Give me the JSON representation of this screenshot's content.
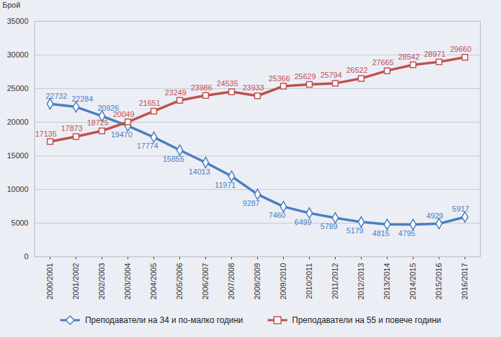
{
  "chart_data": {
    "type": "line",
    "y_label": "Брой",
    "categories": [
      "2000/2001",
      "2001/2002",
      "2002/2003",
      "2003/2004",
      "2004/2005",
      "2005/2006",
      "2006/2007",
      "2007/2008",
      "2008/2009",
      "2009/2010",
      "2010/2011",
      "2011/2012",
      "2012/2013",
      "2013/2014",
      "2014/2015",
      "2015/2016",
      "2016/2017"
    ],
    "series": [
      {
        "name": "Преподаватели на 34 и по-малко години",
        "color": "#4a7ebf",
        "marker": "diamond",
        "values": [
          22732,
          22284,
          20926,
          19470,
          17774,
          15855,
          14013,
          11971,
          9287,
          7460,
          6499,
          5789,
          5179,
          4815,
          4795,
          4929,
          5917
        ]
      },
      {
        "name": "Преподаватели на 55 и повече години",
        "color": "#c0504d",
        "marker": "square",
        "values": [
          17135,
          17873,
          18725,
          20049,
          21651,
          23249,
          23986,
          24535,
          23933,
          25366,
          25629,
          25794,
          26522,
          27665,
          28542,
          28971,
          29660
        ]
      }
    ],
    "ylim": [
      0,
      35000
    ],
    "yticks": [
      0,
      5000,
      10000,
      15000,
      20000,
      25000,
      30000,
      35000
    ],
    "grid": true,
    "data_labels": true,
    "legend": "bottom"
  }
}
